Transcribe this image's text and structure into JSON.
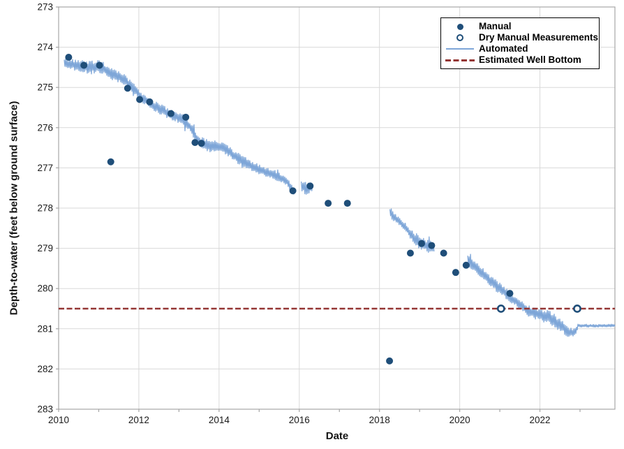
{
  "chart_data": {
    "type": "line",
    "title": "",
    "xlabel": "Date",
    "ylabel": "Depth-to-water (feet below ground surface)",
    "x_axis": {
      "min": 2010,
      "max": 2023.87,
      "major_tick_labels": [
        2010,
        2012,
        2014,
        2016,
        2018,
        2020,
        2022
      ],
      "minor_tick_step": 1,
      "gridline_ticks": [
        2012,
        2014,
        2016,
        2018,
        2020,
        2022
      ]
    },
    "y_axis": {
      "min": 273,
      "max": 283,
      "inverted": true,
      "ticks": [
        273,
        274,
        275,
        276,
        277,
        278,
        279,
        280,
        281,
        282,
        283
      ],
      "gridline_ticks": [
        274,
        275,
        276,
        277,
        278,
        279,
        280,
        281,
        282
      ]
    },
    "styles": {
      "background": "#FFFFFF",
      "grid_color": "#D9D9D9",
      "axis_color": "#A6A6A6",
      "tick_label_color": "#1A1A1A"
    },
    "legend": {
      "position": "top-right",
      "border_color": "#000000",
      "background": "#FFFFFF"
    },
    "series": [
      {
        "name": "Manual",
        "type": "scatter",
        "marker": "filled-circle",
        "color": "#1F4E79",
        "points": [
          [
            2010.25,
            274.25
          ],
          [
            2010.63,
            274.45
          ],
          [
            2011.02,
            274.45
          ],
          [
            2011.3,
            276.85
          ],
          [
            2011.72,
            275.02
          ],
          [
            2012.02,
            275.3
          ],
          [
            2012.27,
            275.36
          ],
          [
            2012.8,
            275.65
          ],
          [
            2013.17,
            275.74
          ],
          [
            2013.4,
            276.37
          ],
          [
            2013.56,
            276.39
          ],
          [
            2015.84,
            277.57
          ],
          [
            2016.27,
            277.45
          ],
          [
            2016.72,
            277.88
          ],
          [
            2017.2,
            277.88
          ],
          [
            2018.25,
            281.8
          ],
          [
            2018.77,
            279.12
          ],
          [
            2019.05,
            278.88
          ],
          [
            2019.3,
            278.93
          ],
          [
            2019.6,
            279.12
          ],
          [
            2019.9,
            279.6
          ],
          [
            2020.16,
            279.42
          ],
          [
            2021.25,
            280.12
          ]
        ]
      },
      {
        "name": "Dry Manual Measurements",
        "type": "scatter",
        "marker": "open-circle",
        "color": "#1F4E79",
        "points": [
          [
            2021.03,
            280.5
          ],
          [
            2022.93,
            280.5
          ]
        ]
      },
      {
        "name": "Automated",
        "type": "noisy-line",
        "color": "#7EA6D8",
        "comment": "anchors are [year, depth_ft, noise_amplitude_ft]",
        "segments": [
          [
            [
              2010.14,
              274.38,
              0.12
            ],
            [
              2010.5,
              274.47,
              0.13
            ],
            [
              2010.8,
              274.5,
              0.16
            ],
            [
              2011.05,
              274.48,
              0.15
            ],
            [
              2011.3,
              274.65,
              0.14
            ],
            [
              2011.6,
              274.78,
              0.13
            ],
            [
              2011.9,
              275.05,
              0.11
            ],
            [
              2012.1,
              275.28,
              0.11
            ],
            [
              2012.35,
              275.44,
              0.12
            ],
            [
              2012.6,
              275.58,
              0.13
            ],
            [
              2012.9,
              275.72,
              0.12
            ],
            [
              2013.1,
              275.8,
              0.12
            ],
            [
              2013.3,
              276.0,
              0.12
            ],
            [
              2013.45,
              276.28,
              0.13
            ],
            [
              2013.6,
              276.42,
              0.15
            ],
            [
              2013.9,
              276.45,
              0.16
            ],
            [
              2014.15,
              276.5,
              0.15
            ],
            [
              2014.4,
              276.72,
              0.13
            ],
            [
              2014.7,
              276.9,
              0.13
            ],
            [
              2015.0,
              277.05,
              0.13
            ],
            [
              2015.35,
              277.15,
              0.11
            ],
            [
              2015.7,
              277.35,
              0.1
            ],
            [
              2015.88,
              277.62,
              0.1
            ]
          ],
          [
            [
              2016.05,
              277.45,
              0.12
            ],
            [
              2016.18,
              277.52,
              0.16
            ],
            [
              2016.33,
              277.48,
              0.1
            ]
          ],
          [
            [
              2018.26,
              278.1,
              0.13
            ],
            [
              2018.45,
              278.3,
              0.1
            ],
            [
              2018.62,
              278.45,
              0.1
            ],
            [
              2018.8,
              278.68,
              0.12
            ],
            [
              2019.0,
              278.85,
              0.16
            ],
            [
              2019.2,
              278.95,
              0.17
            ],
            [
              2019.36,
              279.0,
              0.12
            ]
          ],
          [
            [
              2020.2,
              279.3,
              0.13
            ],
            [
              2020.5,
              279.55,
              0.14
            ],
            [
              2020.8,
              279.85,
              0.14
            ],
            [
              2021.1,
              280.08,
              0.13
            ],
            [
              2021.4,
              280.32,
              0.12
            ],
            [
              2021.7,
              280.55,
              0.13
            ],
            [
              2022.0,
              280.65,
              0.16
            ],
            [
              2022.3,
              280.75,
              0.16
            ],
            [
              2022.55,
              280.95,
              0.14
            ],
            [
              2022.75,
              281.1,
              0.13
            ],
            [
              2022.88,
              281.1,
              0.1
            ],
            [
              2022.96,
              280.92,
              0.04
            ],
            [
              2023.4,
              280.93,
              0.035
            ],
            [
              2023.87,
              280.92,
              0.035
            ]
          ]
        ]
      },
      {
        "name": "Estimated Well Bottom",
        "type": "hline",
        "style": "dashed",
        "color": "#943634",
        "y": 280.5
      }
    ]
  }
}
